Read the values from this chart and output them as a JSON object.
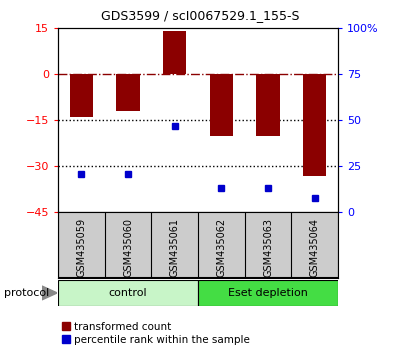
{
  "title": "GDS3599 / scI0067529.1_155-S",
  "samples": [
    "GSM435059",
    "GSM435060",
    "GSM435061",
    "GSM435062",
    "GSM435063",
    "GSM435064"
  ],
  "transformed_count": [
    -14,
    -12,
    14,
    -20,
    -20,
    -33
  ],
  "percentile_rank": [
    21,
    21,
    47,
    13,
    13,
    8
  ],
  "groups": [
    {
      "label": "control",
      "color": "#C8F5C8"
    },
    {
      "label": "Eset depletion",
      "color": "#44DD44"
    }
  ],
  "bar_color": "#8B0000",
  "dot_color": "#0000CC",
  "left_ylim": [
    -45,
    15
  ],
  "left_yticks": [
    -45,
    -30,
    -15,
    0,
    15
  ],
  "right_ylim": [
    0,
    100
  ],
  "right_yticks": [
    0,
    25,
    50,
    75,
    100
  ],
  "right_yticklabels": [
    "0",
    "25",
    "50",
    "75",
    "100%"
  ],
  "hline_y": 0,
  "dotted_lines": [
    -15,
    -30
  ],
  "protocol_label": "protocol",
  "legend_items": [
    {
      "label": "transformed count",
      "color": "#8B0000"
    },
    {
      "label": "percentile rank within the sample",
      "color": "#0000CC"
    }
  ]
}
